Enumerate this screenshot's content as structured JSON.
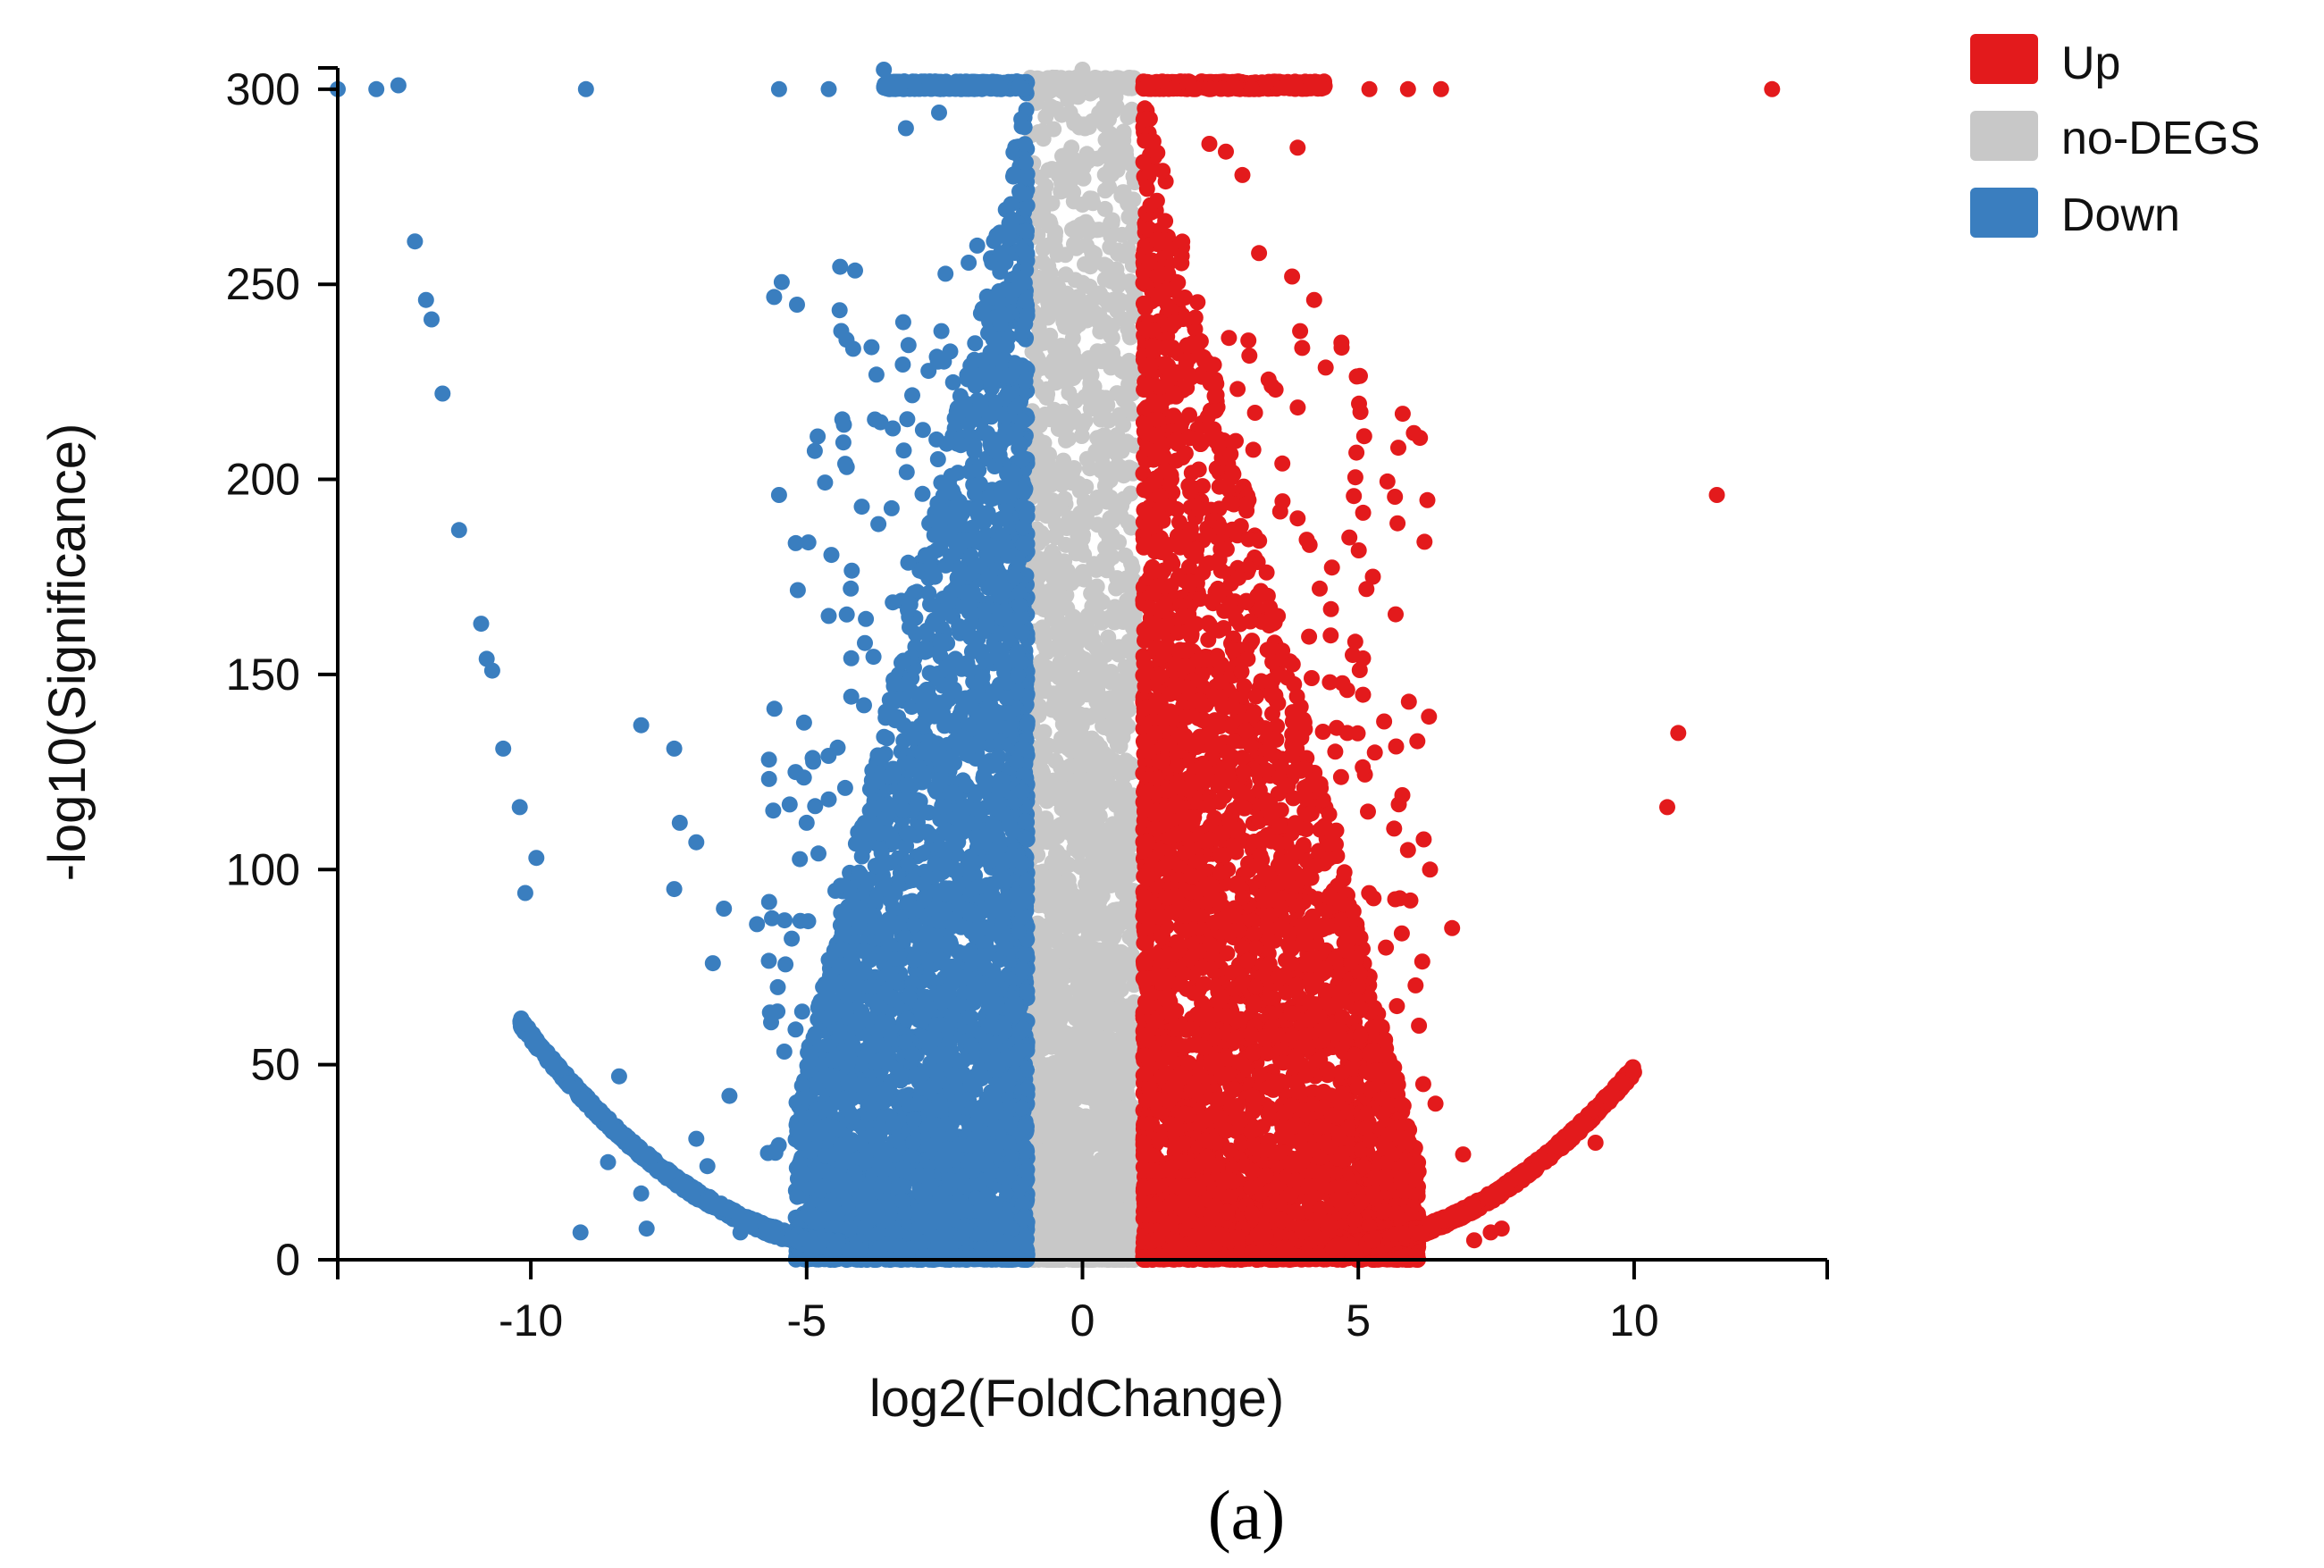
{
  "chart_data": {
    "type": "scatter",
    "subtype": "volcano",
    "xlabel": "log2(FoldChange)",
    "ylabel": "-log10(Significance)",
    "xlim": [
      -13.5,
      13.5
    ],
    "ylim": [
      0,
      305
    ],
    "xticks": [
      -10,
      -5,
      0,
      5,
      10
    ],
    "yticks": [
      0,
      50,
      100,
      150,
      200,
      250,
      300
    ],
    "grid": false,
    "legend": {
      "position": "top-right",
      "entries": [
        {
          "name": "Up",
          "color": "#e31a1c"
        },
        {
          "name": "no-DEGS",
          "color": "#c8c8c8"
        },
        {
          "name": "Down",
          "color": "#3a7ebf"
        }
      ]
    },
    "fold_change_threshold": 1,
    "series": [
      {
        "name": "Up",
        "color": "#e31a1c",
        "outliers": [
          [
            12.5,
            300
          ],
          [
            11.5,
            196
          ],
          [
            10.8,
            135
          ],
          [
            10.6,
            116
          ],
          [
            6.2,
            184
          ],
          [
            4.2,
            246
          ],
          [
            3.8,
            252
          ],
          [
            3.2,
            258
          ],
          [
            2.3,
            286
          ],
          [
            2.6,
            284
          ],
          [
            3.9,
            285
          ],
          [
            2.9,
            278
          ],
          [
            5.9,
            300
          ],
          [
            6.5,
            300
          ],
          [
            5.2,
            300
          ],
          [
            7.4,
            7
          ],
          [
            7.1,
            5
          ],
          [
            6.9,
            27
          ],
          [
            7.6,
            8
          ],
          [
            6.1,
            60
          ],
          [
            5.9,
            105
          ],
          [
            6.3,
            100
          ],
          [
            5.0,
            70
          ],
          [
            5.5,
            80
          ],
          [
            9.3,
            30
          ],
          [
            4.8,
            135
          ],
          [
            4.5,
            160
          ],
          [
            4.9,
            155
          ],
          [
            3.5,
            223
          ],
          [
            4.3,
            172
          ],
          [
            3.9,
            190
          ],
          [
            6.7,
            85
          ],
          [
            5.3,
            130
          ],
          [
            4.6,
            110
          ],
          [
            5.7,
            65
          ],
          [
            6.4,
            40
          ]
        ]
      },
      {
        "name": "Down",
        "color": "#3a7ebf",
        "outliers": [
          [
            -13.5,
            300
          ],
          [
            -12.8,
            300
          ],
          [
            -12.4,
            301
          ],
          [
            -9.0,
            300
          ],
          [
            -12.1,
            261
          ],
          [
            -11.9,
            246
          ],
          [
            -11.8,
            241
          ],
          [
            -11.6,
            222
          ],
          [
            -11.3,
            187
          ],
          [
            -10.9,
            163
          ],
          [
            -10.8,
            154
          ],
          [
            -10.7,
            151
          ],
          [
            -10.5,
            131
          ],
          [
            -10.2,
            116
          ],
          [
            -9.9,
            103
          ],
          [
            -10.1,
            94
          ],
          [
            -5.5,
            196
          ],
          [
            -4.8,
            211
          ],
          [
            -4.3,
            204
          ],
          [
            -4.0,
            193
          ],
          [
            -4.6,
            165
          ],
          [
            -4.2,
            172
          ],
          [
            -8.0,
            137
          ],
          [
            -7.4,
            131
          ],
          [
            -7.3,
            112
          ],
          [
            -7.0,
            107
          ],
          [
            -7.4,
            95
          ],
          [
            -6.5,
            90
          ],
          [
            -5.9,
            86
          ],
          [
            -5.4,
            87
          ],
          [
            -9.1,
            7
          ],
          [
            -8.4,
            47
          ],
          [
            -8.6,
            25
          ],
          [
            -8.0,
            17
          ],
          [
            -7.9,
            8
          ],
          [
            -7.0,
            31
          ],
          [
            -6.8,
            24
          ],
          [
            -6.2,
            7
          ],
          [
            -6.4,
            42
          ],
          [
            -5.2,
            125
          ],
          [
            -5.0,
            112
          ],
          [
            -4.6,
            118
          ],
          [
            -5.2,
            59
          ],
          [
            -6.7,
            76
          ],
          [
            -5.5,
            300
          ],
          [
            -4.6,
            300
          ],
          [
            -3.6,
            305
          ],
          [
            -3.2,
            290
          ],
          [
            -2.6,
            294
          ]
        ]
      },
      {
        "name": "no-DEGS",
        "color": "#c8c8c8",
        "outliers": [
          [
            0.0,
            305
          ],
          [
            -0.5,
            302
          ],
          [
            0.3,
            300
          ],
          [
            0.6,
            298
          ],
          [
            -0.2,
            285
          ],
          [
            0.4,
            255
          ],
          [
            -0.6,
            265
          ],
          [
            0.2,
            230
          ],
          [
            -0.3,
            210
          ],
          [
            0.5,
            190
          ],
          [
            4.5,
            3
          ],
          [
            5.0,
            4
          ],
          [
            3.2,
            3
          ]
        ]
      }
    ]
  },
  "figure": {
    "panel_label": "(a)"
  }
}
